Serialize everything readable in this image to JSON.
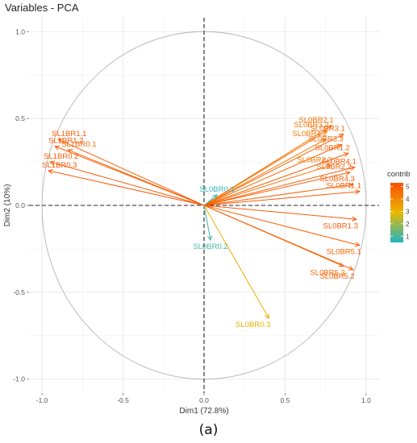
{
  "chart_data": {
    "type": "scatter",
    "title": "Variables - PCA",
    "xlabel": "Dim1 (72.8%)",
    "ylabel": "Dim2 (10%)",
    "xlim": [
      -1.08,
      1.08
    ],
    "ylim": [
      -1.08,
      1.08
    ],
    "xticks": [
      "-1.0",
      "-0.5",
      "0.0",
      "0.5",
      "1.0"
    ],
    "yticks": [
      "-1.0",
      "-0.5",
      "0.0",
      "0.5",
      "1.0"
    ],
    "xtick_values": [
      -1,
      -0.5,
      0,
      0.5,
      1
    ],
    "ytick_values": [
      -1,
      -0.5,
      0,
      0.5,
      1
    ],
    "grid": true,
    "correlation_circle": true,
    "legend": {
      "title": "contrib",
      "position": "right",
      "ticks": [
        "5",
        "4",
        "3",
        "2",
        "1"
      ],
      "tick_values": [
        5,
        4,
        3,
        2,
        1
      ],
      "range": [
        0.5,
        5.3
      ],
      "colors": [
        "#21b5c3",
        "#e7b800",
        "#fc4e07"
      ]
    },
    "variables": [
      {
        "name": "SL1BR1.1",
        "x": -0.9,
        "y": 0.38,
        "contrib": 5.0
      },
      {
        "name": "SL1BR1.2",
        "x": -0.92,
        "y": 0.34,
        "contrib": 5.0
      },
      {
        "name": "SL1BR0.1",
        "x": -0.84,
        "y": 0.32,
        "contrib": 4.8
      },
      {
        "name": "SL1BR0.2",
        "x": -0.95,
        "y": 0.25,
        "contrib": 5.0
      },
      {
        "name": "SL1BR0.3",
        "x": -0.96,
        "y": 0.2,
        "contrib": 5.0
      },
      {
        "name": "SL0BR2.1",
        "x": 0.79,
        "y": 0.46,
        "contrib": 4.5
      },
      {
        "name": "SL0BR3.2",
        "x": 0.76,
        "y": 0.43,
        "contrib": 4.4
      },
      {
        "name": "SL0BR3.1",
        "x": 0.86,
        "y": 0.41,
        "contrib": 4.8
      },
      {
        "name": "SL0BR4.2",
        "x": 0.75,
        "y": 0.38,
        "contrib": 4.3
      },
      {
        "name": "SL0BR3.3",
        "x": 0.85,
        "y": 0.35,
        "contrib": 4.7
      },
      {
        "name": "SL0BR1.2",
        "x": 0.89,
        "y": 0.3,
        "contrib": 4.9
      },
      {
        "name": "SL0BR2.3",
        "x": 0.78,
        "y": 0.23,
        "contrib": 4.4
      },
      {
        "name": "SL0BR4.1",
        "x": 0.93,
        "y": 0.22,
        "contrib": 5.0
      },
      {
        "name": "SL0BR2.2",
        "x": 0.9,
        "y": 0.19,
        "contrib": 4.9
      },
      {
        "name": "SL0BR4.3",
        "x": 0.92,
        "y": 0.12,
        "contrib": 4.9
      },
      {
        "name": "SL0BR1.1",
        "x": 0.96,
        "y": 0.08,
        "contrib": 5.0
      },
      {
        "name": "SL0BR1.3",
        "x": 0.94,
        "y": -0.08,
        "contrib": 5.0
      },
      {
        "name": "SL0BR0.1",
        "x": 0.08,
        "y": 0.06,
        "contrib": 0.7
      },
      {
        "name": "SL0BR0.2",
        "x": 0.04,
        "y": -0.2,
        "contrib": 0.9
      },
      {
        "name": "SL0BR5.1",
        "x": 0.96,
        "y": -0.23,
        "contrib": 4.9
      },
      {
        "name": "SL0BR5.3",
        "x": 0.86,
        "y": -0.35,
        "contrib": 4.7
      },
      {
        "name": "SL0BR5.2",
        "x": 0.92,
        "y": -0.37,
        "contrib": 4.9
      },
      {
        "name": "SL0BR0.3",
        "x": 0.4,
        "y": -0.65,
        "contrib": 3.1
      }
    ]
  },
  "figure": {
    "panel_label": "(a)"
  }
}
